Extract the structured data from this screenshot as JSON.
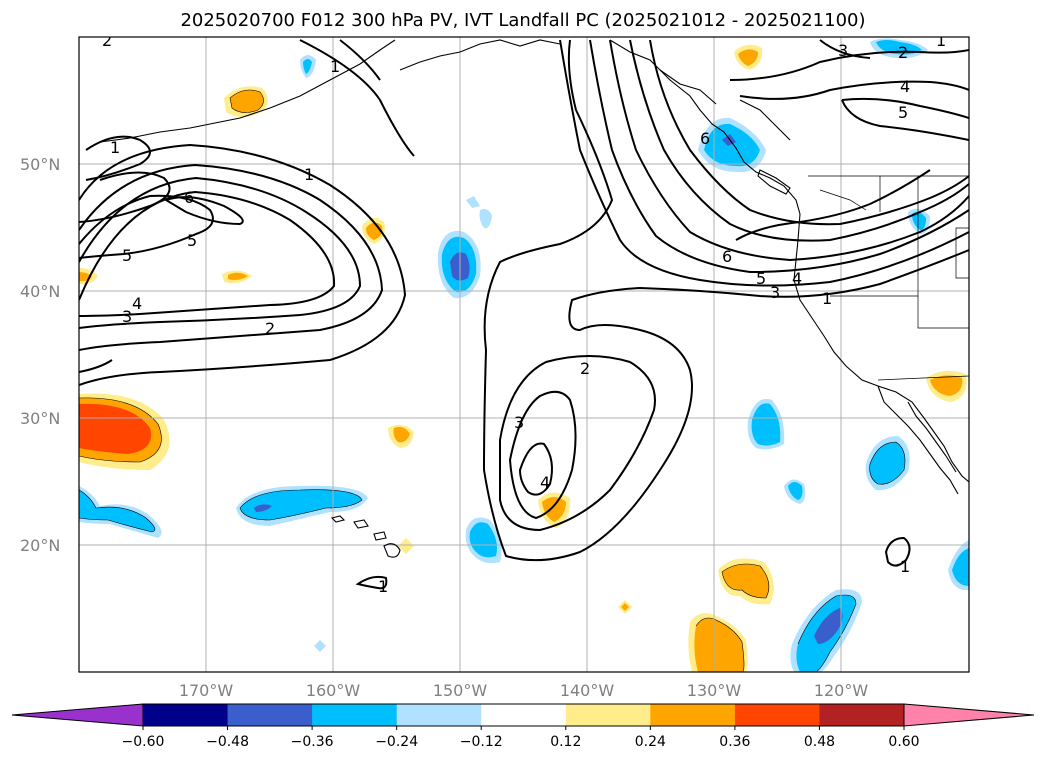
{
  "title": "2025020700 F012 300 hPa PV, IVT Landfall PC (2025021012 - 2025021100)",
  "map": {
    "lat_ticks": [
      "50°N",
      "40°N",
      "30°N",
      "20°N"
    ],
    "lon_ticks": [
      "170°W",
      "160°W",
      "150°W",
      "140°W",
      "130°W",
      "120°W"
    ],
    "gridlines": true,
    "extent": {
      "lon_min": -180,
      "lon_max": -110,
      "lat_min": 10,
      "lat_max": 60
    }
  },
  "contour_labels": [
    "1",
    "2",
    "3",
    "4",
    "5",
    "6"
  ],
  "colorbar": {
    "ticks": [
      "−0.60",
      "−0.48",
      "−0.36",
      "−0.24",
      "−0.12",
      "0.12",
      "0.24",
      "0.36",
      "0.48",
      "0.60"
    ],
    "colors": [
      "#9932CC",
      "#00008B",
      "#3A5FCD",
      "#00BFFF",
      "#B0E2FF",
      "#FFFFFF",
      "#FFEC8B",
      "#FFA500",
      "#FF4500",
      "#B22222",
      "#FF82AB"
    ]
  }
}
